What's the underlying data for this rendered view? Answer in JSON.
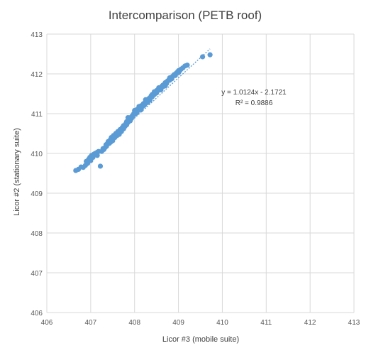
{
  "chart_data": {
    "type": "scatter",
    "title": "Intercomparison (PETB roof)",
    "xlabel": "Licor #3 (mobile suite)",
    "ylabel": "Licor #2 (stationary suite)",
    "xlim": [
      406,
      413
    ],
    "ylim": [
      406,
      413
    ],
    "x_ticks": [
      "406",
      "407",
      "408",
      "409",
      "410",
      "411",
      "412",
      "413"
    ],
    "y_ticks": [
      "406",
      "407",
      "408",
      "409",
      "410",
      "411",
      "412",
      "413"
    ],
    "grid": true,
    "marker_color": "#5B9BD5",
    "trendline": {
      "style": "dotted",
      "slope": 1.0124,
      "intercept": -2.1721,
      "equation_label": "y = 1.0124x - 2.1721",
      "r2_label": "R² = 0.9886"
    },
    "series": [
      {
        "points": [
          [
            406.66,
            409.57
          ],
          [
            406.72,
            409.6
          ],
          [
            406.78,
            409.66
          ],
          [
            406.83,
            409.65
          ],
          [
            406.88,
            409.7
          ],
          [
            406.9,
            409.8
          ],
          [
            406.93,
            409.75
          ],
          [
            406.95,
            409.85
          ],
          [
            406.98,
            409.9
          ],
          [
            407.0,
            409.82
          ],
          [
            407.02,
            409.95
          ],
          [
            407.05,
            409.9
          ],
          [
            407.07,
            409.98
          ],
          [
            407.1,
            410.0
          ],
          [
            407.13,
            409.97
          ],
          [
            407.15,
            410.03
          ],
          [
            407.18,
            410.05
          ],
          [
            407.22,
            409.68
          ],
          [
            407.25,
            410.05
          ],
          [
            407.3,
            410.1
          ],
          [
            407.33,
            410.15
          ],
          [
            407.36,
            410.18
          ],
          [
            407.38,
            410.25
          ],
          [
            407.4,
            410.3
          ],
          [
            407.42,
            410.25
          ],
          [
            407.45,
            410.35
          ],
          [
            407.47,
            410.4
          ],
          [
            407.5,
            410.35
          ],
          [
            407.52,
            410.45
          ],
          [
            407.55,
            410.4
          ],
          [
            407.57,
            410.5
          ],
          [
            407.6,
            410.45
          ],
          [
            407.62,
            410.55
          ],
          [
            407.65,
            410.5
          ],
          [
            407.67,
            410.6
          ],
          [
            407.7,
            410.58
          ],
          [
            407.72,
            410.65
          ],
          [
            407.75,
            410.7
          ],
          [
            407.78,
            410.68
          ],
          [
            407.8,
            410.75
          ],
          [
            407.82,
            410.8
          ],
          [
            407.85,
            410.78
          ],
          [
            407.88,
            410.85
          ],
          [
            407.9,
            410.9
          ],
          [
            407.93,
            410.88
          ],
          [
            407.95,
            410.95
          ],
          [
            407.98,
            411.0
          ],
          [
            408.0,
            410.98
          ],
          [
            408.03,
            411.05
          ],
          [
            408.05,
            411.1
          ],
          [
            408.08,
            411.08
          ],
          [
            408.1,
            411.12
          ],
          [
            408.13,
            411.15
          ],
          [
            408.15,
            411.2
          ],
          [
            408.18,
            411.18
          ],
          [
            408.2,
            411.25
          ],
          [
            408.23,
            411.22
          ],
          [
            408.25,
            411.3
          ],
          [
            408.28,
            411.35
          ],
          [
            408.3,
            411.32
          ],
          [
            408.33,
            411.38
          ],
          [
            408.35,
            411.4
          ],
          [
            408.38,
            411.45
          ],
          [
            408.4,
            411.42
          ],
          [
            408.43,
            411.5
          ],
          [
            408.45,
            411.48
          ],
          [
            408.48,
            411.55
          ],
          [
            408.5,
            411.52
          ],
          [
            408.53,
            411.58
          ],
          [
            408.55,
            411.62
          ],
          [
            408.58,
            411.6
          ],
          [
            408.6,
            411.66
          ],
          [
            408.63,
            411.7
          ],
          [
            408.65,
            411.68
          ],
          [
            408.68,
            411.74
          ],
          [
            408.7,
            411.78
          ],
          [
            408.73,
            411.76
          ],
          [
            408.75,
            411.82
          ],
          [
            408.78,
            411.85
          ],
          [
            408.8,
            411.84
          ],
          [
            408.83,
            411.9
          ],
          [
            408.85,
            411.88
          ],
          [
            408.88,
            411.95
          ],
          [
            408.9,
            411.98
          ],
          [
            408.93,
            411.96
          ],
          [
            408.95,
            412.02
          ],
          [
            408.98,
            412.05
          ],
          [
            409.0,
            412.03
          ],
          [
            409.03,
            412.08
          ],
          [
            409.06,
            412.12
          ],
          [
            409.1,
            412.15
          ],
          [
            409.15,
            412.2
          ],
          [
            409.2,
            412.22
          ],
          [
            409.55,
            412.43
          ],
          [
            409.72,
            412.48
          ],
          [
            407.45,
            410.28
          ],
          [
            407.6,
            410.52
          ],
          [
            407.75,
            410.62
          ],
          [
            407.9,
            410.82
          ],
          [
            408.05,
            411.02
          ],
          [
            408.2,
            411.2
          ],
          [
            408.35,
            411.34
          ],
          [
            408.5,
            411.58
          ],
          [
            408.65,
            411.72
          ],
          [
            408.8,
            411.9
          ],
          [
            407.85,
            410.9
          ],
          [
            408.0,
            411.08
          ],
          [
            408.15,
            411.1
          ],
          [
            408.3,
            411.28
          ],
          [
            408.45,
            411.55
          ],
          [
            408.6,
            411.6
          ],
          [
            407.35,
            410.22
          ],
          [
            407.55,
            410.42
          ],
          [
            407.7,
            410.55
          ],
          [
            407.82,
            410.72
          ],
          [
            407.5,
            410.32
          ],
          [
            407.65,
            410.48
          ],
          [
            407.95,
            410.92
          ],
          [
            408.1,
            411.18
          ],
          [
            408.25,
            411.35
          ],
          [
            408.4,
            411.48
          ],
          [
            408.55,
            411.65
          ],
          [
            408.7,
            411.7
          ],
          [
            408.85,
            411.92
          ],
          [
            409.0,
            412.08
          ],
          [
            407.28,
            410.12
          ],
          [
            407.15,
            409.95
          ]
        ]
      }
    ]
  }
}
